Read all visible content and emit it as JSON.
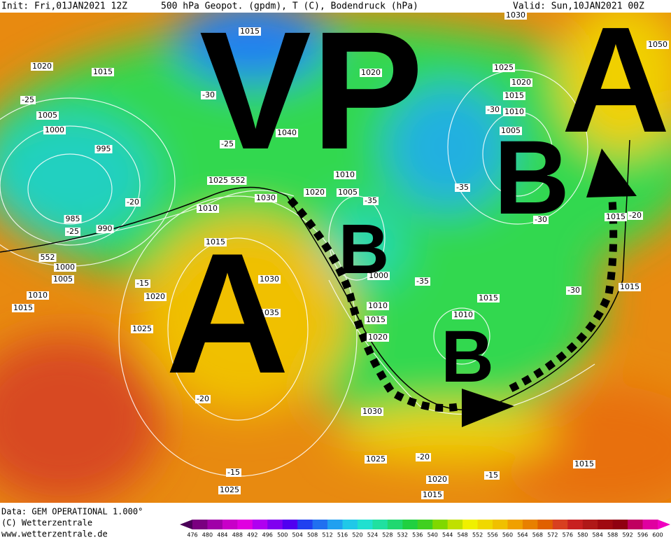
{
  "header": {
    "init": "Init: Fri,01JAN2021 12Z",
    "title": "500 hPa Geopot. (gpdm), T (C), Bodendruck (hPa)",
    "valid": "Valid: Sun,10JAN2021 00Z"
  },
  "overlay_labels": [
    "VP",
    "A",
    "A",
    "B",
    "B",
    "B"
  ],
  "isobar_labels": [
    1015,
    1020,
    1015,
    1020,
    1025,
    1020,
    1015,
    1010,
    1005,
    1005,
    1000,
    995,
    1040,
    1010,
    1020,
    1005,
    1025,
    1030,
    1010,
    985,
    990,
    1015,
    1000,
    1005,
    1010,
    1015,
    1020,
    1030,
    1000,
    1010,
    1015,
    1020,
    1025,
    1015,
    1010,
    1015,
    1015,
    1030,
    1025,
    1020,
    1015,
    1025,
    1015,
    1030,
    1050,
    1035
  ],
  "geopotential_labels": [
    552,
    552
  ],
  "temperature_labels": [
    -25,
    -30,
    -25,
    -20,
    -25,
    -15,
    -35,
    -35,
    -30,
    -30,
    -35,
    -20,
    -15,
    -20,
    -15,
    -20,
    -30
  ],
  "colorbar": {
    "ticks": [
      476,
      480,
      484,
      488,
      492,
      496,
      500,
      504,
      508,
      512,
      516,
      520,
      524,
      528,
      532,
      536,
      540,
      544,
      548,
      552,
      556,
      560,
      564,
      568,
      572,
      576,
      580,
      584,
      588,
      592,
      596,
      600
    ],
    "colors": [
      "#4b0058",
      "#7a0080",
      "#a000a8",
      "#c800c8",
      "#e000e0",
      "#b000f0",
      "#8000f0",
      "#5000f0",
      "#2040f0",
      "#2070f0",
      "#20a0f0",
      "#20c8e8",
      "#20e0d0",
      "#20e0a0",
      "#20d870",
      "#20d040",
      "#40d020",
      "#80d800",
      "#c0e000",
      "#f0f000",
      "#f0d800",
      "#f0c000",
      "#f0a000",
      "#e88000",
      "#e06000",
      "#d84020",
      "#c82020",
      "#b01818",
      "#a00810",
      "#900010",
      "#c00060",
      "#e000a0",
      "#f000c0"
    ]
  },
  "footer": {
    "data": "Data: GEM OPERATIONAL 1.000°",
    "copyright": "(C) Wetterzentrale",
    "url": "www.wetterzentrale.de"
  }
}
